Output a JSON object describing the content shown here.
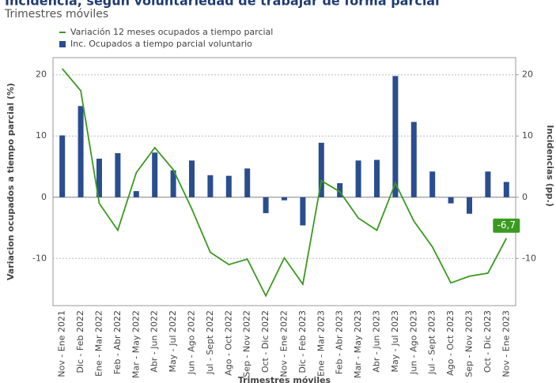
{
  "chart_data": {
    "type": "bar-line",
    "title": "Incidencia, según voluntariedad de trabajar de forma parcial",
    "subtitle": "Trimestres móviles",
    "x_label": "Trimestres móviles",
    "y_label": "Variacion ocupados a tiempo parcial (%)",
    "y2_label": "Incidencias (pp.)",
    "categories": [
      "Nov - Ene 2021",
      "Dic - Feb 2022",
      "Ene - Mar 2022",
      "Feb - Abr 2022",
      "Mar - May 2022",
      "Abr - Jun 2022",
      "May - Jul 2022",
      "Jun - Ago 2022",
      "Jul - Sept 2022",
      "Ago - Oct 2022",
      "Sep - Nov 2022",
      "Oct - Dic 2022",
      "Nov - Ene 2022",
      "Dic - Feb 2023",
      "Ene - Mar 2023",
      "Feb - Abr 2023",
      "Mar - May 2023",
      "Abr - Jun 2023",
      "May - Jul 2023",
      "Jun - Ago 2023",
      "Jul - Sept 2023",
      "Ago - Oct 2023",
      "Sep - Nov 2023",
      "Oct - Dic 2023",
      "Nov - Ene 2023"
    ],
    "series": [
      {
        "name": "Variación 12 meses ocupados a tiempo parcial",
        "type": "line",
        "color": "#3a9a1f",
        "values": [
          21.0,
          17.4,
          -1.0,
          -5.4,
          4.0,
          8.1,
          4.5,
          -1.9,
          -9.0,
          -11.0,
          -10.1,
          -16.1,
          -9.9,
          -14.2,
          2.7,
          0.9,
          -3.4,
          -5.4,
          2.3,
          -3.9,
          -8.1,
          -14.0,
          -12.9,
          -12.4,
          -6.7
        ],
        "value_labels": [
          null,
          null,
          null,
          null,
          null,
          null,
          null,
          null,
          null,
          null,
          null,
          null,
          null,
          null,
          null,
          null,
          null,
          null,
          null,
          null,
          null,
          null,
          null,
          null,
          "-6,7"
        ]
      },
      {
        "name": "Inc. Ocupados a tiempo parcial voluntario",
        "type": "bar",
        "axis": "y2",
        "color": "#2a4d8f",
        "values": [
          10.1,
          14.9,
          6.3,
          7.2,
          1.0,
          7.3,
          4.4,
          6.0,
          3.6,
          3.5,
          4.7,
          -2.6,
          -0.5,
          -4.6,
          8.9,
          2.3,
          6.0,
          6.1,
          19.8,
          12.3,
          4.2,
          -1.0,
          -2.7,
          4.2,
          2.5
        ]
      }
    ],
    "ylim": [
      -17.7,
      22.8
    ],
    "yticks": [
      -10,
      0,
      10,
      20
    ],
    "y2lim": [
      -17.7,
      22.8
    ],
    "y2ticks": [
      -10,
      0,
      10,
      20
    ],
    "grid": true,
    "legend": "top"
  }
}
